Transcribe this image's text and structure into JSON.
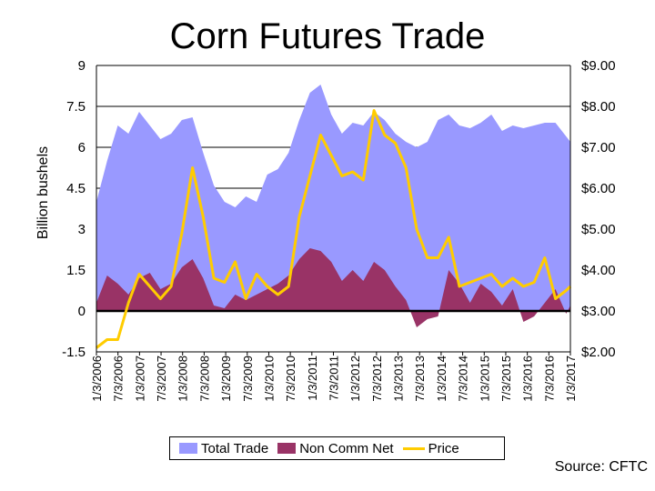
{
  "chart_data": {
    "type": "area",
    "title": "Corn Futures Trade",
    "ylabel": "Billion bushels",
    "ylim": [
      -1.5,
      9
    ],
    "y2lim": [
      2,
      9
    ],
    "y_ticks": [
      "-1.5",
      "0",
      "1.5",
      "3",
      "4.5",
      "6",
      "7.5",
      "9"
    ],
    "y2_ticks": [
      "$2.00",
      "$3.00",
      "$4.00",
      "$5.00",
      "$6.00",
      "$7.00",
      "$8.00",
      "$9.00"
    ],
    "x_ticks": [
      "1/3/2006",
      "7/3/2006",
      "1/3/2007",
      "7/3/2007",
      "1/3/2008",
      "7/3/2008",
      "1/3/2009",
      "7/3/2009",
      "1/3/2010",
      "7/3/2010",
      "1/3/2011",
      "7/3/2011",
      "1/3/2012",
      "7/3/2012",
      "1/3/2013",
      "7/3/2013",
      "1/3/2014",
      "7/3/2014",
      "1/3/2015",
      "7/3/2015",
      "1/3/2016",
      "7/3/2016",
      "1/3/2017"
    ],
    "x": [
      2006.0,
      2006.25,
      2006.5,
      2006.75,
      2007.0,
      2007.25,
      2007.5,
      2007.75,
      2008.0,
      2008.25,
      2008.5,
      2008.75,
      2009.0,
      2009.25,
      2009.5,
      2009.75,
      2010.0,
      2010.25,
      2010.5,
      2010.75,
      2011.0,
      2011.25,
      2011.5,
      2011.75,
      2012.0,
      2012.25,
      2012.5,
      2012.75,
      2013.0,
      2013.25,
      2013.5,
      2013.75,
      2014.0,
      2014.25,
      2014.5,
      2014.75,
      2015.0,
      2015.25,
      2015.5,
      2015.75,
      2016.0,
      2016.25,
      2016.5,
      2016.75,
      2017.0,
      2017.1
    ],
    "series": [
      {
        "name": "Total Trade",
        "axis": "left",
        "color": "#9999ff",
        "values": [
          4.0,
          5.5,
          6.8,
          6.5,
          7.3,
          6.8,
          6.3,
          6.5,
          7.0,
          7.1,
          5.8,
          4.6,
          4.0,
          3.8,
          4.2,
          4.0,
          5.0,
          5.2,
          5.8,
          7.0,
          8.0,
          8.3,
          7.2,
          6.5,
          6.9,
          6.8,
          7.3,
          7.0,
          6.5,
          6.2,
          6.0,
          6.2,
          7.0,
          7.2,
          6.8,
          6.7,
          6.9,
          7.2,
          6.6,
          6.8,
          6.7,
          6.8,
          6.9,
          6.9,
          6.4,
          6.2
        ]
      },
      {
        "name": "Non Comm Net",
        "axis": "left",
        "color": "#993366",
        "values": [
          0.3,
          1.3,
          1.0,
          0.6,
          1.2,
          1.4,
          0.8,
          1.0,
          1.6,
          1.9,
          1.2,
          0.2,
          0.1,
          0.6,
          0.4,
          0.6,
          0.8,
          1.0,
          1.3,
          1.9,
          2.3,
          2.2,
          1.8,
          1.1,
          1.5,
          1.1,
          1.8,
          1.5,
          0.9,
          0.4,
          -0.6,
          -0.3,
          -0.2,
          1.5,
          1.0,
          0.3,
          1.0,
          0.7,
          0.2,
          0.8,
          -0.4,
          -0.2,
          0.3,
          0.8,
          -0.1,
          0.2
        ]
      },
      {
        "name": "Price",
        "axis": "right",
        "color": "#ffcc00",
        "values": [
          2.1,
          2.3,
          2.3,
          3.2,
          3.9,
          3.6,
          3.3,
          3.6,
          4.9,
          6.5,
          5.3,
          3.8,
          3.7,
          4.2,
          3.3,
          3.9,
          3.6,
          3.4,
          3.6,
          5.3,
          6.3,
          7.3,
          6.8,
          6.3,
          6.4,
          6.2,
          7.9,
          7.3,
          7.1,
          6.5,
          5.0,
          4.3,
          4.3,
          4.8,
          3.6,
          3.7,
          3.8,
          3.9,
          3.6,
          3.8,
          3.6,
          3.7,
          4.3,
          3.3,
          3.5,
          3.6
        ]
      }
    ],
    "grid": true,
    "legend": "bottom"
  },
  "legend": {
    "items": [
      {
        "label": "Total Trade",
        "color": "#9999ff"
      },
      {
        "label": "Non Comm Net",
        "color": "#993366"
      },
      {
        "label": "Price",
        "color": "#ffcc00"
      }
    ]
  },
  "source": "Source: CFTC"
}
